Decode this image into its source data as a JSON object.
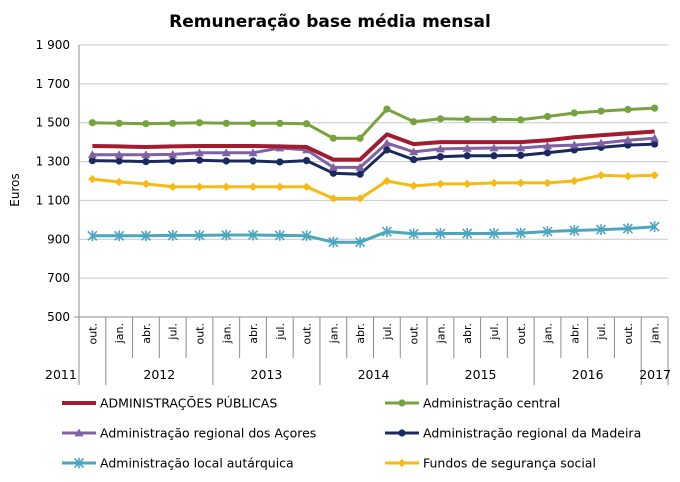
{
  "chart_data": {
    "type": "line",
    "title": "Remuneração base média mensal",
    "xlabel": "",
    "ylabel": "Euros",
    "ylim": [
      500,
      1900
    ],
    "yticks": [
      500,
      700,
      900,
      1100,
      1300,
      1500,
      1700,
      1900
    ],
    "ytick_labels": [
      "500",
      "700",
      "900",
      "1 100",
      "1 300",
      "1 500",
      "1 700",
      "1 900"
    ],
    "categories": [
      "out.",
      "jan.",
      "abr.",
      "jul.",
      "out.",
      "jan.",
      "abr.",
      "jul.",
      "out.",
      "jan.",
      "abr.",
      "jul.",
      "out.",
      "jan.",
      "abr.",
      "jul.",
      "out.",
      "jan.",
      "abr.",
      "jul.",
      "out.",
      "jan."
    ],
    "years": [
      {
        "label": "2011",
        "start": 0,
        "end": 0
      },
      {
        "label": "2012",
        "start": 1,
        "end": 4
      },
      {
        "label": "2013",
        "start": 5,
        "end": 8
      },
      {
        "label": "2014",
        "start": 9,
        "end": 12
      },
      {
        "label": "2015",
        "start": 13,
        "end": 16
      },
      {
        "label": "2016",
        "start": 17,
        "end": 20
      },
      {
        "label": "2017",
        "start": 21,
        "end": 21
      }
    ],
    "grid": true,
    "series": [
      {
        "name": "ADMINISTRAÇÕES PÚBLICAS",
        "color": "#A31B2F",
        "marker": "none",
        "values": [
          1380,
          1378,
          1375,
          1378,
          1380,
          1380,
          1380,
          1378,
          1375,
          1310,
          1310,
          1440,
          1390,
          1400,
          1400,
          1400,
          1400,
          1410,
          1425,
          1435,
          1445,
          1455
        ]
      },
      {
        "name": "Administração central",
        "color": "#77A33E",
        "marker": "circle",
        "values": [
          1500,
          1497,
          1495,
          1497,
          1500,
          1497,
          1497,
          1497,
          1495,
          1420,
          1420,
          1570,
          1505,
          1520,
          1518,
          1518,
          1515,
          1532,
          1550,
          1560,
          1568,
          1575
        ]
      },
      {
        "name": "Administração regional dos Açores",
        "color": "#8061A3",
        "marker": "triangle",
        "values": [
          1335,
          1335,
          1335,
          1337,
          1345,
          1345,
          1345,
          1370,
          1360,
          1270,
          1270,
          1395,
          1350,
          1365,
          1368,
          1370,
          1370,
          1380,
          1385,
          1395,
          1410,
          1420
        ]
      },
      {
        "name": "Administração regional da Madeira",
        "color": "#1B2A5E",
        "marker": "circle",
        "values": [
          1305,
          1303,
          1300,
          1303,
          1307,
          1303,
          1303,
          1298,
          1305,
          1240,
          1235,
          1360,
          1310,
          1325,
          1330,
          1330,
          1332,
          1345,
          1360,
          1373,
          1385,
          1390
        ]
      },
      {
        "name": "Fundos de segurança social",
        "color": "#F5BA13",
        "marker": "diamond",
        "values": [
          1210,
          1195,
          1185,
          1170,
          1170,
          1170,
          1170,
          1170,
          1170,
          1110,
          1110,
          1200,
          1175,
          1185,
          1185,
          1190,
          1190,
          1190,
          1200,
          1230,
          1225,
          1230
        ]
      },
      {
        "name": "Administração local autárquica",
        "color": "#4BA6BE",
        "marker": "star",
        "values": [
          918,
          918,
          918,
          920,
          920,
          922,
          922,
          920,
          918,
          885,
          885,
          940,
          928,
          930,
          930,
          930,
          932,
          940,
          945,
          950,
          955,
          965
        ]
      }
    ],
    "legend": [
      {
        "label": "ADMINISTRAÇÕES PÚBLICAS",
        "series": 0
      },
      {
        "label": "Administração central",
        "series": 1
      },
      {
        "label": "Administração regional dos Açores",
        "series": 2
      },
      {
        "label": "Administração regional da Madeira",
        "series": 3
      },
      {
        "label": "Administração local autárquica",
        "series": 5
      },
      {
        "label": "Fundos de segurança social",
        "series": 4
      }
    ],
    "legend_position": "bottom"
  }
}
